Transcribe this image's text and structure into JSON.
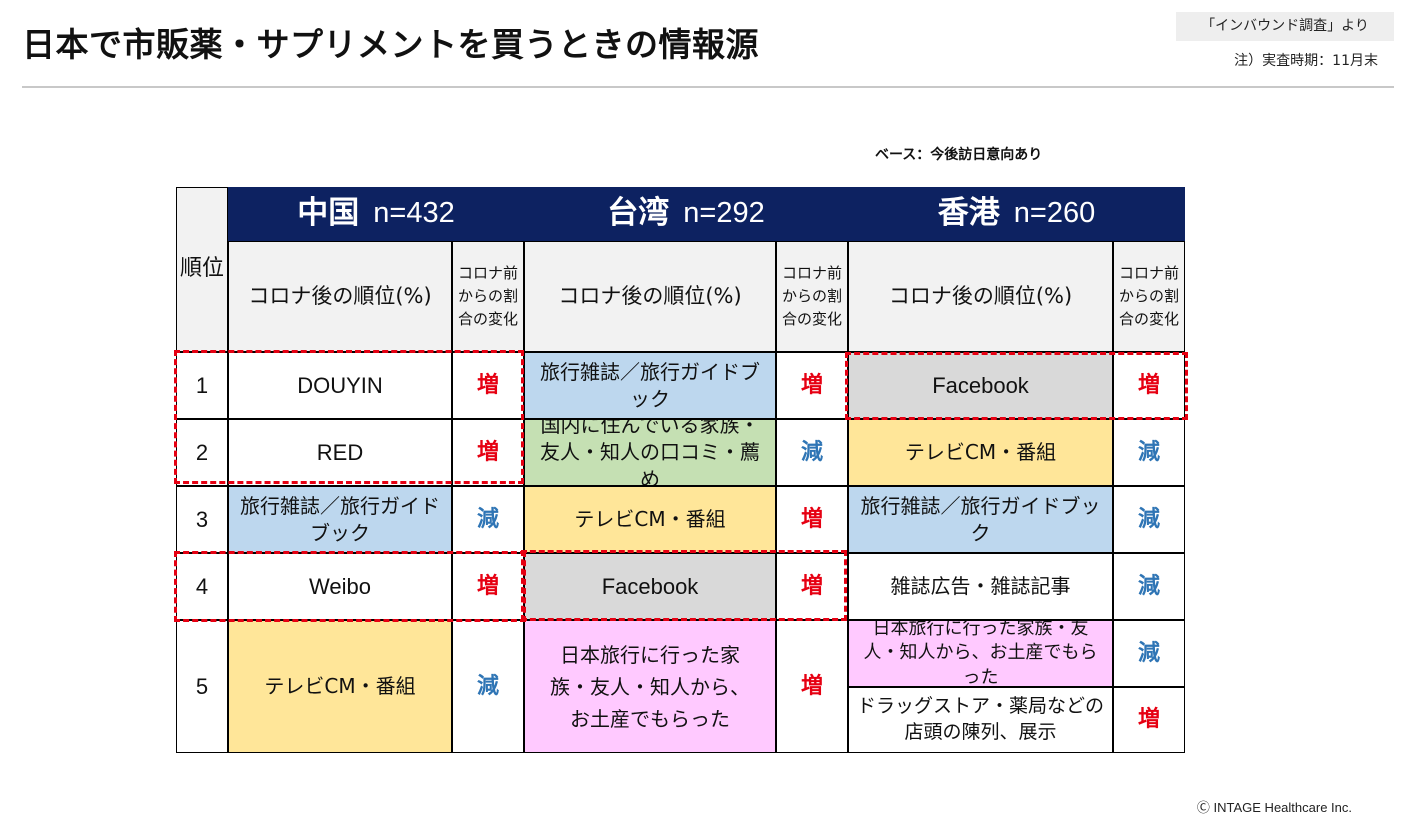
{
  "page": {
    "title": "日本で市販薬・サプリメントを買うときの情報源",
    "source": "「インバウンド調査」より",
    "period": "注）実査時期：11月末",
    "base": "ベース：今後訪日意向あり",
    "copyright": "Ⓒ INTAGE Healthcare Inc."
  },
  "table": {
    "rank_header": "順位",
    "sub_main_label": "コロナ後の順位(%)",
    "sub_change_label": "コロナ前からの割合の変化",
    "ranks": [
      "1",
      "2",
      "3",
      "4",
      "5"
    ],
    "regions": [
      {
        "name": "中国",
        "n": "n=432",
        "items": [
          "DOUYIN",
          "RED",
          "旅行雑誌／旅行ガイドブック",
          "Weibo",
          "テレビCM・番組"
        ],
        "changes": [
          "増",
          "増",
          "減",
          "増",
          "減"
        ]
      },
      {
        "name": "台湾",
        "n": "n=292",
        "items": [
          "旅行雑誌／旅行ガイドブック",
          "国内に住んでいる家族・友人・知人の口コミ・薦め",
          "テレビCM・番組",
          "Facebook",
          "日本旅行に行った家族・友人・知人から、お土産でもらった"
        ],
        "changes": [
          "増",
          "減",
          "増",
          "増",
          "増"
        ]
      },
      {
        "name": "香港",
        "n": "n=260",
        "items": [
          "Facebook",
          "テレビCM・番組",
          "旅行雑誌／旅行ガイドブック",
          "雑誌広告・雑誌記事",
          "日本旅行に行った家族・友人・知人から、お土産でもらった",
          "ドラッグストア・薬局などの店頭の陳列、展示"
        ],
        "changes": [
          "増",
          "減",
          "減",
          "減",
          "減",
          "増"
        ]
      }
    ]
  },
  "colors": {
    "header_navy": "#0d2261",
    "increase_red": "#e60012",
    "decrease_blue": "#2f75b5",
    "highlight_dash": "#e60012",
    "fill_blue": "#bdd7ee",
    "fill_gray": "#d9d9d9",
    "fill_green": "#c5e0b3",
    "fill_yellow": "#ffe699",
    "fill_pink": "#ffc9ff"
  }
}
